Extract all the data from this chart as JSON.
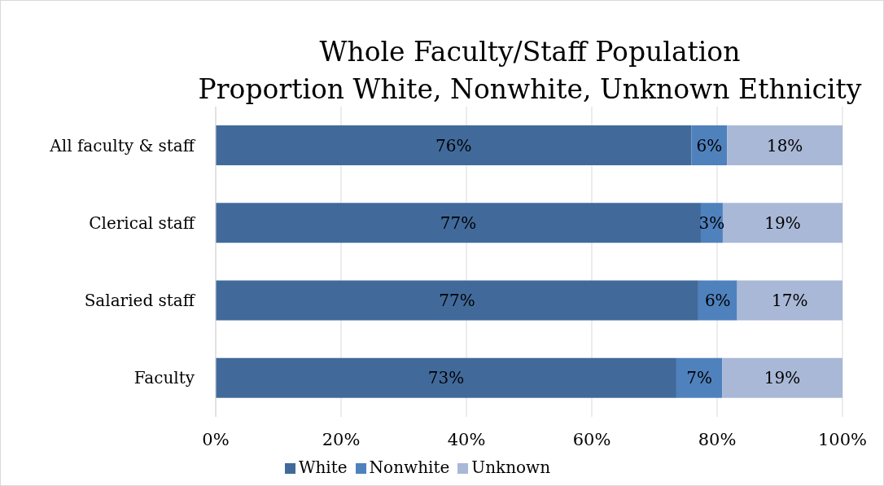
{
  "chart_data": {
    "type": "bar",
    "orientation": "horizontal",
    "stacked": true,
    "title": "Whole Faculty/Staff Population\nProportion White, Nonwhite, Unknown Ethnicity",
    "categories": [
      "All faculty & staff",
      "Clerical staff",
      "Salaried staff",
      "Faculty"
    ],
    "series": [
      {
        "name": "White",
        "color": "#416a9b",
        "values": [
          75.9,
          77.4,
          77.0,
          73.5
        ],
        "value_labels": [
          "76%",
          "77%",
          "77%",
          "73%"
        ]
      },
      {
        "name": "Nonwhite",
        "color": "#4f81bd",
        "values": [
          5.7,
          3.5,
          6.2,
          7.3
        ],
        "value_labels": [
          "6%",
          "3%",
          "6%",
          "7%"
        ]
      },
      {
        "name": "Unknown",
        "color": "#a9b8d6",
        "values": [
          18.4,
          19.1,
          16.8,
          19.2
        ],
        "value_labels": [
          "18%",
          "19%",
          "17%",
          "19%"
        ]
      }
    ],
    "xlim": [
      0,
      100
    ],
    "xticks": [
      {
        "value": 0,
        "label": "0%"
      },
      {
        "value": 20,
        "label": "20%"
      },
      {
        "value": 40,
        "label": "40%"
      },
      {
        "value": 60,
        "label": "60%"
      },
      {
        "value": 80,
        "label": "80%"
      },
      {
        "value": 100,
        "label": "100%"
      }
    ],
    "grid": "x",
    "legend": "bottom"
  }
}
